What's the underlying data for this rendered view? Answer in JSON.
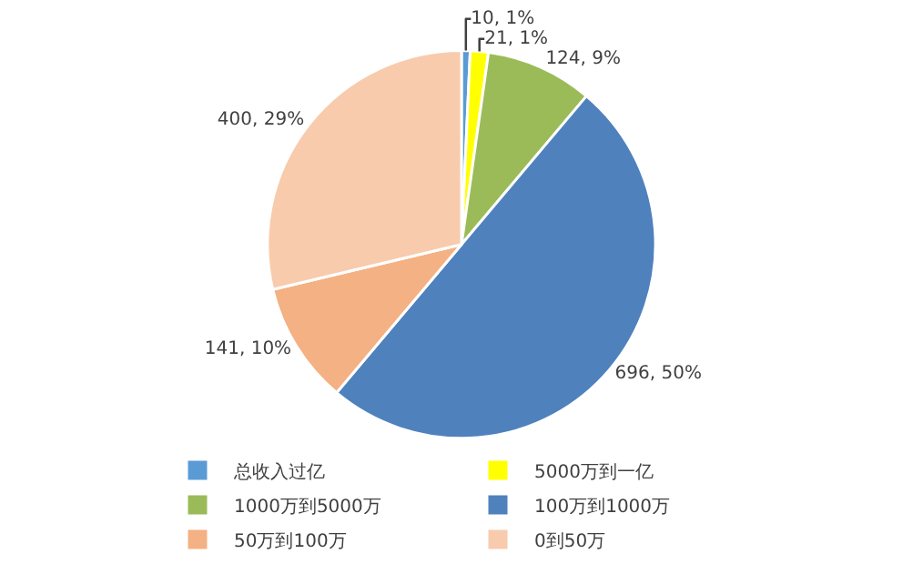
{
  "chart_data": {
    "type": "pie",
    "categories": [
      "总收入过亿",
      "5000万到一亿",
      "1000万到5000万",
      "100万到1000万",
      "50万到100万",
      "0到50万"
    ],
    "values": [
      10,
      21,
      124,
      696,
      141,
      400
    ],
    "colors": [
      "#5b9bd5",
      "#ffff00",
      "#9bbb59",
      "#4f81bd",
      "#f4b183",
      "#f8cbad"
    ],
    "value_labels": [
      "10, 1%",
      "21, 1%",
      "124, 9%",
      "696, 50%",
      "141, 10%",
      "400, 29%"
    ],
    "legend": "bottom"
  }
}
